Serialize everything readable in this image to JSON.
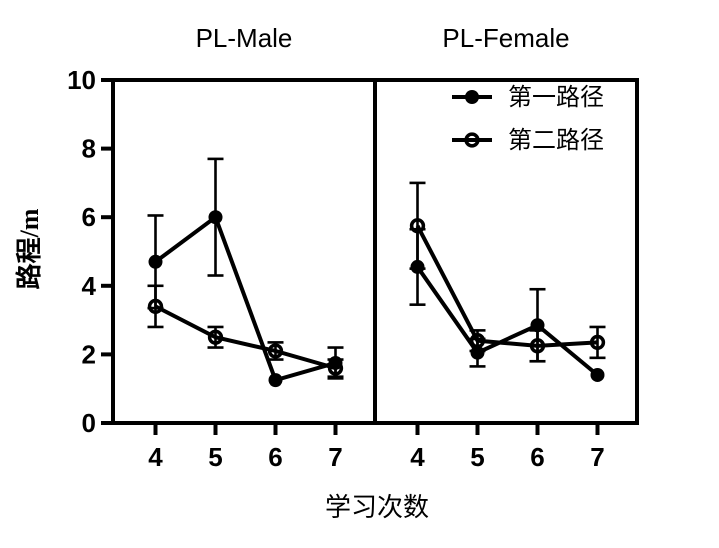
{
  "figure": {
    "x_axis_title": "学习次数",
    "y_axis_title": "路程/m",
    "panel_titles": [
      "PL-Male",
      "PL-Female"
    ],
    "legend": {
      "position": "top-right-inside",
      "items": [
        {
          "label": "第一路径",
          "marker": "filled-circle-icon"
        },
        {
          "label": "第二路径",
          "marker": "open-circle-icon"
        }
      ]
    },
    "colors": {
      "foreground": "#000000",
      "background": "#ffffff"
    }
  },
  "chart_data": [
    {
      "type": "line",
      "title": "PL-Male",
      "x": [
        4,
        5,
        6,
        7
      ],
      "xlabel": "学习次数",
      "ylabel": "路程/m",
      "ylim": [
        0,
        10
      ],
      "yticks": [
        0,
        2,
        4,
        6,
        8,
        10
      ],
      "grid": false,
      "error_bars": "symmetric",
      "series": [
        {
          "name": "第一路径",
          "marker": "filled-circle",
          "values": [
            4.7,
            6.0,
            1.25,
            1.75
          ],
          "errors": [
            1.35,
            1.7,
            0,
            0.45
          ]
        },
        {
          "name": "第二路径",
          "marker": "open-circle",
          "values": [
            3.4,
            2.5,
            2.1,
            1.6
          ],
          "errors": [
            0.6,
            0.3,
            0.25,
            0.25
          ]
        }
      ]
    },
    {
      "type": "line",
      "title": "PL-Female",
      "x": [
        4,
        5,
        6,
        7
      ],
      "xlabel": "学习次数",
      "ylabel": "路程/m",
      "ylim": [
        0,
        10
      ],
      "yticks": [
        0,
        2,
        4,
        6,
        8,
        10
      ],
      "grid": false,
      "error_bars": "symmetric",
      "series": [
        {
          "name": "第一路径",
          "marker": "filled-circle",
          "values": [
            4.55,
            2.05,
            2.85,
            1.4
          ],
          "errors": [
            1.1,
            0.4,
            1.05,
            0
          ]
        },
        {
          "name": "第二路径",
          "marker": "open-circle",
          "values": [
            5.75,
            2.4,
            2.25,
            2.35
          ],
          "errors": [
            1.25,
            0.3,
            0.45,
            0.45
          ]
        }
      ]
    }
  ]
}
